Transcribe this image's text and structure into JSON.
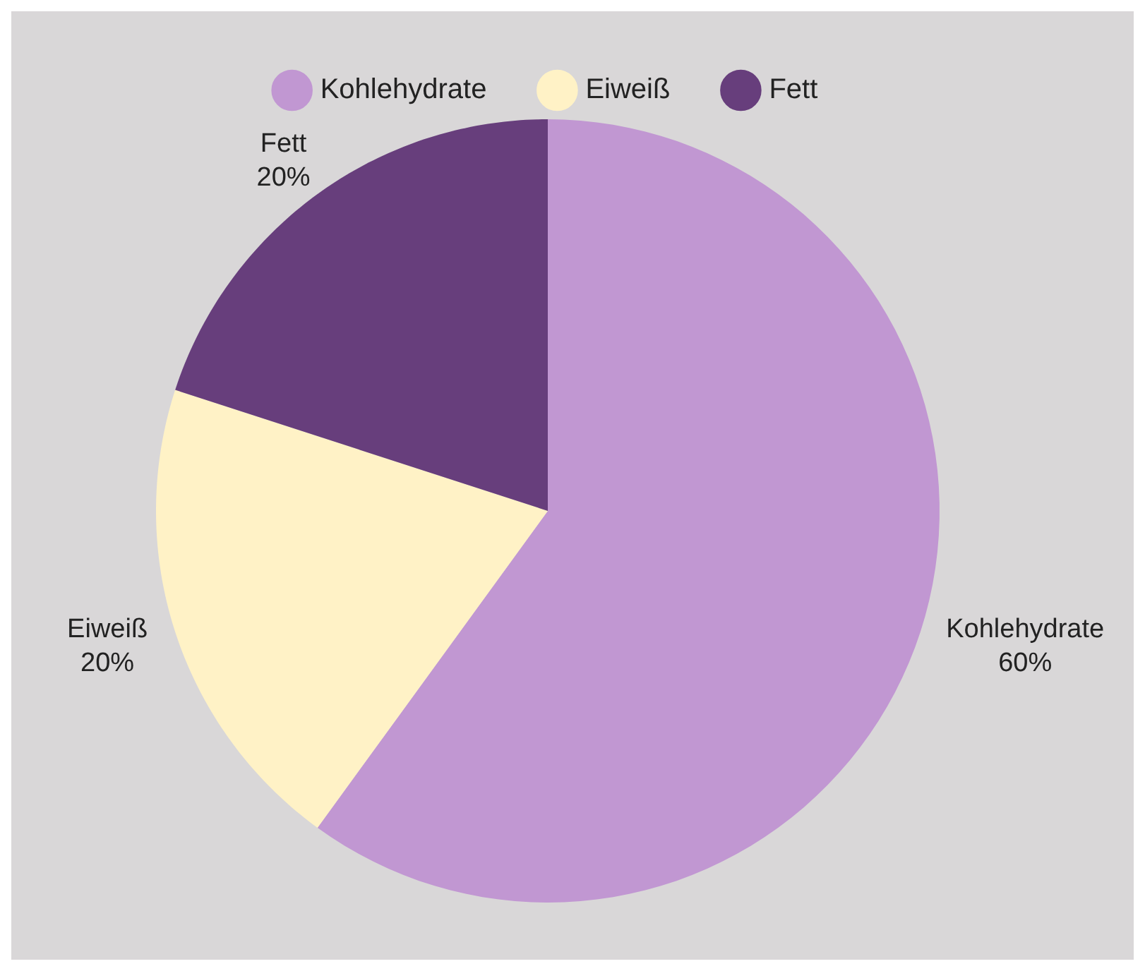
{
  "chart_data": {
    "type": "pie",
    "categories": [
      "Kohlehydrate",
      "Eiweiß",
      "Fett"
    ],
    "values": [
      60,
      20,
      20
    ],
    "value_labels": [
      "60%",
      "20%",
      "20%"
    ],
    "colors": [
      "#c197d2",
      "#fff2c6",
      "#673e7c"
    ],
    "legend": "top"
  }
}
